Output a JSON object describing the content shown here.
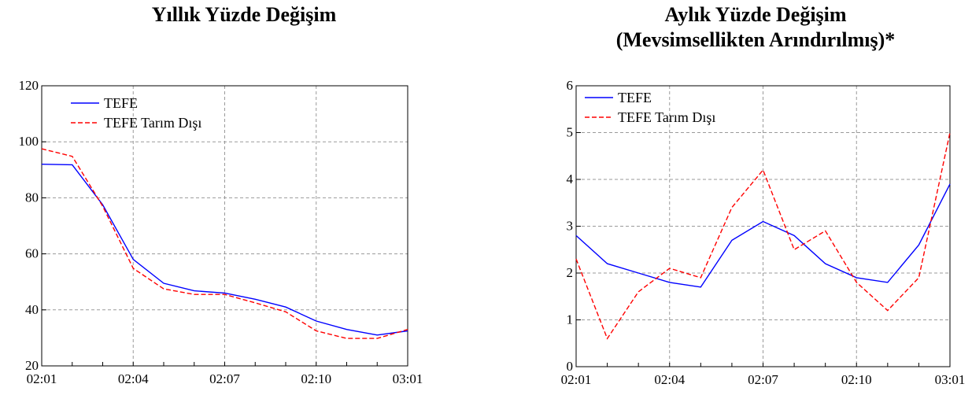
{
  "charts": [
    {
      "title_lines": [
        "Yıllık Yüzde Değişim"
      ],
      "chart_data": {
        "type": "line",
        "title": "Yıllık Yüzde Değişim",
        "x": [
          "02:01",
          "02:02",
          "02:03",
          "02:04",
          "02:05",
          "02:06",
          "02:07",
          "02:08",
          "02:09",
          "02:10",
          "02:11",
          "02:12",
          "03:01"
        ],
        "x_tick_labels": [
          "02:01",
          "02:04",
          "02:07",
          "02:10",
          "03:01"
        ],
        "ylim": [
          20,
          120
        ],
        "y_ticks": [
          20,
          40,
          60,
          80,
          100,
          120
        ],
        "grid": true,
        "legend_position": "top-left",
        "series": [
          {
            "name": "TEFE",
            "color": "#0000ff",
            "style": "solid",
            "values": [
              92,
              91.8,
              77.5,
              58,
              49.5,
              46.8,
              46,
              43.8,
              41,
              36,
              33,
              31,
              32.5
            ]
          },
          {
            "name": "TEFE Tarım Dışı",
            "color": "#ff0000",
            "style": "dashed",
            "values": [
              97.5,
              94.8,
              77,
              54.8,
              47.5,
              45.5,
              45.5,
              42.5,
              39.3,
              32.5,
              29.8,
              29.8,
              33
            ]
          }
        ]
      }
    },
    {
      "title_lines": [
        "Aylık Yüzde Değişim",
        "(Mevsimsellikten Arındırılmış)*"
      ],
      "chart_data": {
        "type": "line",
        "title": "Aylık Yüzde Değişim (Mevsimsellikten Arındırılmış)*",
        "x": [
          "02:01",
          "02:02",
          "02:03",
          "02:04",
          "02:05",
          "02:06",
          "02:07",
          "02:08",
          "02:09",
          "02:10",
          "02:11",
          "02:12",
          "03:01"
        ],
        "x_tick_labels": [
          "02:01",
          "02:04",
          "02:07",
          "02:10",
          "03:01"
        ],
        "ylim": [
          0,
          6
        ],
        "y_ticks": [
          0,
          1,
          2,
          3,
          4,
          5,
          6
        ],
        "grid": true,
        "legend_position": "top-left",
        "series": [
          {
            "name": "TEFE",
            "color": "#0000ff",
            "style": "solid",
            "values": [
              2.8,
              2.2,
              2.0,
              1.8,
              1.7,
              2.7,
              3.1,
              2.8,
              2.2,
              1.9,
              1.8,
              2.6,
              3.9
            ]
          },
          {
            "name": "TEFE Tarım Dışı",
            "color": "#ff0000",
            "style": "dashed",
            "values": [
              2.3,
              0.6,
              1.6,
              2.1,
              1.9,
              3.4,
              4.2,
              2.5,
              2.9,
              1.8,
              1.2,
              1.9,
              5.0
            ]
          }
        ]
      }
    }
  ]
}
